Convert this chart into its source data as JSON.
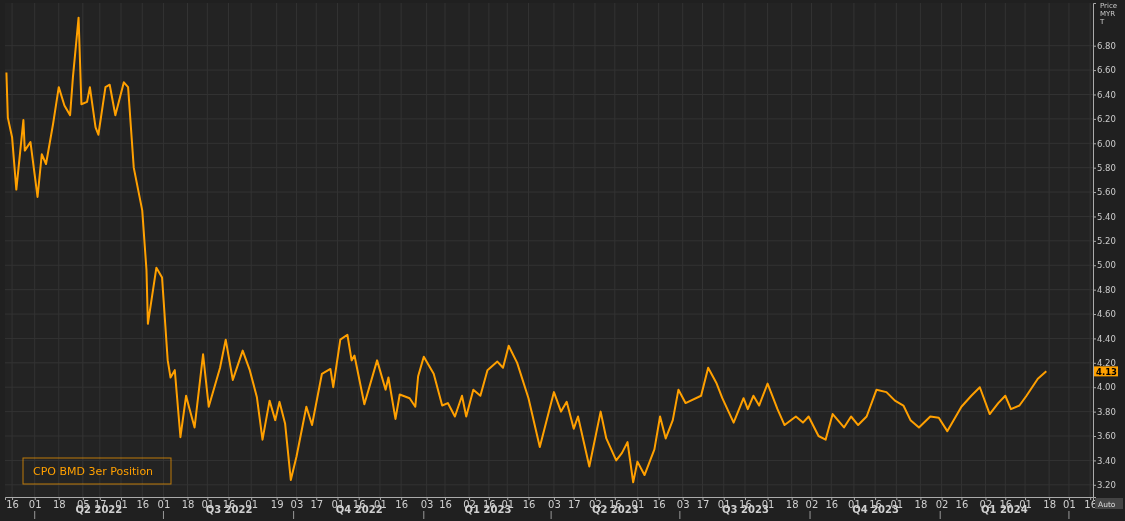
{
  "chart_data": {
    "type": "line",
    "ylabel": "Price MYR T",
    "x": [
      "2022-03-12",
      "2022-03-13",
      "2022-03-16",
      "2022-03-19",
      "2022-03-24",
      "2022-03-25",
      "2022-03-29",
      "2022-04-03",
      "2022-04-06",
      "2022-04-09",
      "2022-04-14",
      "2022-04-18",
      "2022-04-22",
      "2022-04-26",
      "2022-04-28",
      "2022-05-02",
      "2022-05-04",
      "2022-05-08",
      "2022-05-10",
      "2022-05-14",
      "2022-05-16",
      "2022-05-21",
      "2022-05-24",
      "2022-05-28",
      "2022-06-03",
      "2022-06-06",
      "2022-06-10",
      "2022-06-16",
      "2022-06-19",
      "2022-06-20",
      "2022-06-26",
      "2022-06-30",
      "2022-07-04",
      "2022-07-06",
      "2022-07-09",
      "2022-07-13",
      "2022-07-17",
      "2022-07-19",
      "2022-07-23",
      "2022-07-29",
      "2022-08-02",
      "2022-08-10",
      "2022-08-14",
      "2022-08-19",
      "2022-08-26",
      "2022-08-31",
      "2022-09-05",
      "2022-09-09",
      "2022-09-14",
      "2022-09-18",
      "2022-09-21",
      "2022-09-25",
      "2022-09-29",
      "2022-10-03",
      "2022-10-10",
      "2022-10-14",
      "2022-10-21",
      "2022-10-27",
      "2022-10-29",
      "2022-11-03",
      "2022-11-08",
      "2022-11-11",
      "2022-11-13",
      "2022-11-20",
      "2022-11-29",
      "2022-12-05",
      "2022-12-07",
      "2022-12-12",
      "2022-12-15",
      "2022-12-22",
      "2022-12-26",
      "2022-12-28",
      "2023-01-01",
      "2023-01-08",
      "2023-01-14",
      "2023-01-18",
      "2023-01-23",
      "2023-01-28",
      "2023-01-31",
      "2023-02-05",
      "2023-02-10",
      "2023-02-15",
      "2023-02-22",
      "2023-02-26",
      "2023-03-02",
      "2023-03-08",
      "2023-03-16",
      "2023-03-24",
      "2023-04-03",
      "2023-04-08",
      "2023-04-12",
      "2023-04-17",
      "2023-04-20",
      "2023-04-28",
      "2023-05-06",
      "2023-05-10",
      "2023-05-17",
      "2023-05-21",
      "2023-05-25",
      "2023-05-29",
      "2023-06-01",
      "2023-06-06",
      "2023-06-13",
      "2023-06-17",
      "2023-06-21",
      "2023-06-26",
      "2023-06-30",
      "2023-07-05",
      "2023-07-16",
      "2023-07-21",
      "2023-07-27",
      "2023-07-31",
      "2023-08-08",
      "2023-08-15",
      "2023-08-18",
      "2023-08-22",
      "2023-08-26",
      "2023-09-01",
      "2023-09-08",
      "2023-09-13",
      "2023-09-21",
      "2023-09-26",
      "2023-09-30",
      "2023-10-07",
      "2023-10-12",
      "2023-10-17",
      "2023-10-25",
      "2023-10-30",
      "2023-11-04",
      "2023-11-10",
      "2023-11-17",
      "2023-11-24",
      "2023-11-30",
      "2023-12-06",
      "2023-12-11",
      "2023-12-17",
      "2023-12-25",
      "2023-12-31",
      "2024-01-06",
      "2024-01-16",
      "2024-01-23",
      "2024-01-29",
      "2024-02-05",
      "2024-02-11",
      "2024-02-16",
      "2024-02-20",
      "2024-02-26",
      "2024-03-02",
      "2024-03-10",
      "2024-03-16"
    ],
    "series": [
      {
        "name": "CPO BMD 3er Position",
        "color": "#ffa000",
        "values": [
          6.58,
          6.21,
          6.05,
          5.62,
          6.19,
          5.94,
          6.01,
          5.56,
          5.91,
          5.83,
          6.16,
          6.46,
          6.31,
          6.23,
          6.54,
          7.03,
          6.32,
          6.34,
          6.46,
          6.13,
          6.07,
          6.46,
          6.48,
          6.23,
          6.5,
          6.46,
          5.8,
          5.45,
          4.96,
          4.52,
          4.98,
          4.9,
          4.22,
          4.08,
          4.14,
          3.59,
          3.93,
          3.84,
          3.67,
          4.27,
          3.84,
          4.16,
          4.39,
          4.06,
          4.3,
          4.14,
          3.92,
          3.57,
          3.89,
          3.73,
          3.88,
          3.7,
          3.24,
          3.43,
          3.84,
          3.69,
          4.11,
          4.15,
          4.0,
          4.39,
          4.43,
          4.22,
          4.26,
          3.86,
          4.22,
          3.98,
          4.08,
          3.74,
          3.94,
          3.91,
          3.84,
          4.09,
          4.25,
          4.11,
          3.85,
          3.87,
          3.76,
          3.93,
          3.76,
          3.98,
          3.93,
          4.14,
          4.21,
          4.16,
          4.34,
          4.2,
          3.91,
          3.51,
          3.96,
          3.8,
          3.88,
          3.66,
          3.76,
          3.35,
          3.8,
          3.58,
          3.4,
          3.46,
          3.55,
          3.22,
          3.39,
          3.28,
          3.49,
          3.76,
          3.58,
          3.73,
          3.98,
          3.87,
          3.93,
          4.16,
          4.03,
          3.91,
          3.71,
          3.91,
          3.82,
          3.93,
          3.85,
          4.03,
          3.82,
          3.69,
          3.76,
          3.71,
          3.76,
          3.6,
          3.57,
          3.78,
          3.67,
          3.76,
          3.69,
          3.76,
          3.98,
          3.96,
          3.89,
          3.85,
          3.73,
          3.67,
          3.76,
          3.75,
          3.64,
          3.84,
          3.93,
          4.0,
          3.78,
          3.87,
          3.93,
          3.82,
          3.85,
          3.93,
          4.07,
          4.13
        ]
      }
    ],
    "xlim": [
      "2022-03-11",
      "2024-04-18"
    ],
    "xticks": [
      {
        "value": "2022-03-16",
        "label": "16"
      },
      {
        "value": "2022-04-01",
        "label": "01"
      },
      {
        "value": "2022-04-18",
        "label": "18"
      },
      {
        "value": "2022-05-05",
        "label": "05"
      },
      {
        "value": "2022-05-17",
        "label": "17"
      },
      {
        "value": "2022-06-01",
        "label": "01"
      },
      {
        "value": "2022-06-16",
        "label": "16"
      },
      {
        "value": "2022-07-01",
        "label": "01"
      },
      {
        "value": "2022-07-18",
        "label": "18"
      },
      {
        "value": "2022-08-01",
        "label": "01"
      },
      {
        "value": "2022-08-16",
        "label": "16"
      },
      {
        "value": "2022-09-01",
        "label": "01"
      },
      {
        "value": "2022-09-19",
        "label": "19"
      },
      {
        "value": "2022-10-03",
        "label": "03"
      },
      {
        "value": "2022-10-17",
        "label": "17"
      },
      {
        "value": "2022-11-01",
        "label": "01"
      },
      {
        "value": "2022-11-16",
        "label": "16"
      },
      {
        "value": "2022-12-01",
        "label": "01"
      },
      {
        "value": "2022-12-16",
        "label": "16"
      },
      {
        "value": "2023-01-03",
        "label": "03"
      },
      {
        "value": "2023-01-16",
        "label": "16"
      },
      {
        "value": "2023-02-02",
        "label": "02"
      },
      {
        "value": "2023-02-16",
        "label": "16"
      },
      {
        "value": "2023-03-01",
        "label": "01"
      },
      {
        "value": "2023-03-16",
        "label": "16"
      },
      {
        "value": "2023-04-03",
        "label": "03"
      },
      {
        "value": "2023-04-17",
        "label": "17"
      },
      {
        "value": "2023-05-02",
        "label": "02"
      },
      {
        "value": "2023-05-16",
        "label": "16"
      },
      {
        "value": "2023-06-01",
        "label": "01"
      },
      {
        "value": "2023-06-16",
        "label": "16"
      },
      {
        "value": "2023-07-03",
        "label": "03"
      },
      {
        "value": "2023-07-17",
        "label": "17"
      },
      {
        "value": "2023-08-01",
        "label": "01"
      },
      {
        "value": "2023-08-16",
        "label": "16"
      },
      {
        "value": "2023-09-01",
        "label": "01"
      },
      {
        "value": "2023-09-18",
        "label": "18"
      },
      {
        "value": "2023-10-02",
        "label": "02"
      },
      {
        "value": "2023-10-16",
        "label": "16"
      },
      {
        "value": "2023-11-01",
        "label": "01"
      },
      {
        "value": "2023-11-16",
        "label": "16"
      },
      {
        "value": "2023-12-01",
        "label": "01"
      },
      {
        "value": "2023-12-18",
        "label": "18"
      },
      {
        "value": "2024-01-02",
        "label": "02"
      },
      {
        "value": "2024-01-16",
        "label": "16"
      },
      {
        "value": "2024-02-02",
        "label": "02"
      },
      {
        "value": "2024-02-16",
        "label": "16"
      },
      {
        "value": "2024-03-01",
        "label": "01"
      },
      {
        "value": "2024-03-18",
        "label": "18"
      },
      {
        "value": "2024-04-01",
        "label": "01"
      },
      {
        "value": "2024-04-16",
        "label": "16"
      }
    ],
    "x2lim": [
      "2022-03-11",
      "2024-04-18"
    ],
    "x2ticks": [
      {
        "value": "2022-04-01",
        "label": null
      },
      {
        "value": "2022-05-16",
        "label": "Q2 2022"
      },
      {
        "value": "2022-07-01",
        "label": null
      },
      {
        "value": "2022-08-16",
        "label": "Q3 2022"
      },
      {
        "value": "2022-10-01",
        "label": null
      },
      {
        "value": "2022-11-16",
        "label": "Q4 2022"
      },
      {
        "value": "2023-01-01",
        "label": null
      },
      {
        "value": "2023-02-15",
        "label": "Q1 2023"
      },
      {
        "value": "2023-04-01",
        "label": null
      },
      {
        "value": "2023-05-16",
        "label": "Q2 2023"
      },
      {
        "value": "2023-07-01",
        "label": null
      },
      {
        "value": "2023-08-16",
        "label": "Q3 2023"
      },
      {
        "value": "2023-10-01",
        "label": null
      },
      {
        "value": "2023-11-16",
        "label": "Q4 2023"
      },
      {
        "value": "2024-01-01",
        "label": null
      },
      {
        "value": "2024-02-15",
        "label": "Q1 2024"
      },
      {
        "value": "2024-04-01",
        "label": null
      }
    ],
    "ylim": [
      3.1,
      7.15
    ],
    "yticks": [
      {
        "value": 3.2,
        "label": "3.20"
      },
      {
        "value": 3.4,
        "label": "3.40"
      },
      {
        "value": 3.6,
        "label": "3.60"
      },
      {
        "value": 3.8,
        "label": "3.80"
      },
      {
        "value": 4.0,
        "label": "4.00"
      },
      {
        "value": 4.2,
        "label": "4.20"
      },
      {
        "value": 4.4,
        "label": "4.40"
      },
      {
        "value": 4.6,
        "label": "4.60"
      },
      {
        "value": 4.8,
        "label": "4.80"
      },
      {
        "value": 5.0,
        "label": "5.00"
      },
      {
        "value": 5.2,
        "label": "5.20"
      },
      {
        "value": 5.4,
        "label": "5.40"
      },
      {
        "value": 5.6,
        "label": "5.60"
      },
      {
        "value": 5.8,
        "label": "5.80"
      },
      {
        "value": 6.0,
        "label": "6.00"
      },
      {
        "value": 6.2,
        "label": "6.20"
      },
      {
        "value": 6.4,
        "label": "6.40"
      },
      {
        "value": 6.6,
        "label": "6.60"
      },
      {
        "value": 6.8,
        "label": "6.80"
      }
    ],
    "annotations": [
      "4.13",
      "Auto"
    ],
    "grid": true,
    "legend": "bottom left",
    "line_style": "solid",
    "marker": "none"
  }
}
